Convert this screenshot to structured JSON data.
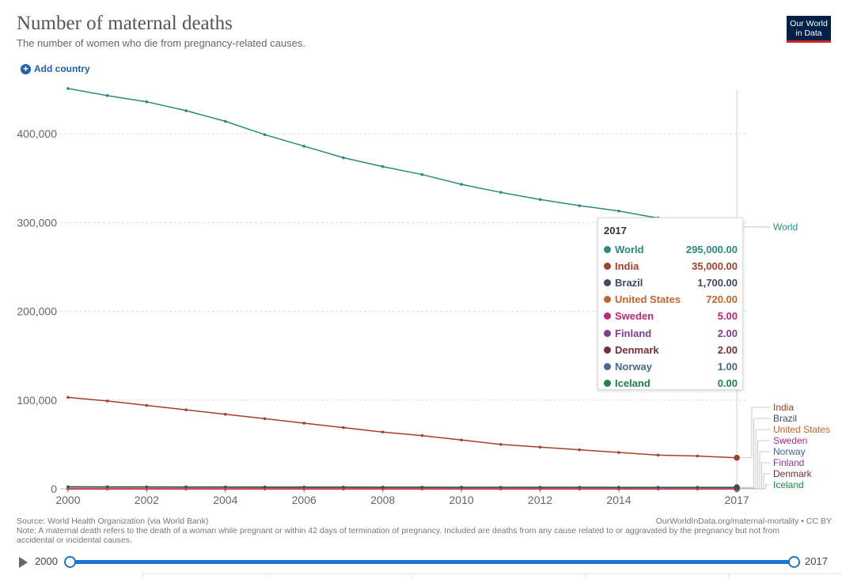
{
  "header": {
    "title": "Number of maternal deaths",
    "subtitle": "The number of women who die from pregnancy-related causes.",
    "logo_line1": "Our World",
    "logo_line2": "in Data",
    "add_country": "Add country"
  },
  "chart_data": {
    "type": "line",
    "title": "Number of maternal deaths",
    "subtitle": "The number of women who die from pregnancy-related causes.",
    "x": [
      2000,
      2001,
      2002,
      2003,
      2004,
      2005,
      2006,
      2007,
      2008,
      2009,
      2010,
      2011,
      2012,
      2013,
      2014,
      2015,
      2016,
      2017
    ],
    "xlim": [
      1999.8,
      2017.3
    ],
    "ylim": [
      0,
      450000
    ],
    "xticks": [
      "2000",
      "2002",
      "2004",
      "2006",
      "2008",
      "2010",
      "2012",
      "2014",
      "2017"
    ],
    "yticks": [
      "0",
      "100,000",
      "200,000",
      "300,000",
      "400,000"
    ],
    "grid": true,
    "series": [
      {
        "name": "World",
        "color": "#2a8a7f",
        "values": [
          451000,
          443000,
          436000,
          426000,
          414000,
          399000,
          386000,
          373000,
          363000,
          354000,
          343000,
          334000,
          326000,
          319000,
          313000,
          305000,
          300000,
          295000
        ]
      },
      {
        "name": "India",
        "color": "#a2402a",
        "values": [
          103000,
          99000,
          94000,
          89000,
          84000,
          79000,
          74000,
          69000,
          64000,
          60000,
          55000,
          50000,
          47000,
          44000,
          41000,
          38000,
          37000,
          35000
        ]
      },
      {
        "name": "Brazil",
        "color": "#3d4a63",
        "values": [
          2300,
          2250,
          2200,
          2150,
          2100,
          2050,
          2000,
          1950,
          1900,
          1850,
          1820,
          1790,
          1760,
          1740,
          1720,
          1710,
          1700,
          1700
        ]
      },
      {
        "name": "United States",
        "color": "#c4652d",
        "values": [
          600,
          610,
          620,
          630,
          640,
          650,
          660,
          670,
          680,
          690,
          700,
          705,
          710,
          712,
          715,
          717,
          719,
          720
        ]
      },
      {
        "name": "Sweden",
        "color": "#c0267d",
        "values": [
          5,
          5,
          5,
          5,
          5,
          5,
          5,
          5,
          5,
          5,
          5,
          5,
          5,
          5,
          5,
          5,
          5,
          5
        ]
      },
      {
        "name": "Finland",
        "color": "#7d3d94",
        "values": [
          2,
          2,
          2,
          2,
          2,
          2,
          2,
          2,
          2,
          2,
          2,
          2,
          2,
          2,
          2,
          2,
          2,
          2
        ]
      },
      {
        "name": "Denmark",
        "color": "#7a2e37",
        "values": [
          4,
          4,
          4,
          4,
          3,
          3,
          3,
          3,
          3,
          3,
          3,
          2,
          2,
          2,
          2,
          2,
          2,
          2
        ]
      },
      {
        "name": "Norway",
        "color": "#4a6592",
        "values": [
          3,
          3,
          3,
          2,
          2,
          2,
          2,
          2,
          2,
          2,
          2,
          1,
          1,
          1,
          1,
          1,
          1,
          1
        ]
      },
      {
        "name": "Iceland",
        "color": "#1c8446",
        "values": [
          0,
          0,
          0,
          0,
          0,
          0,
          0,
          0,
          0,
          0,
          0,
          0,
          0,
          0,
          0,
          0,
          0,
          0
        ]
      }
    ],
    "end_labels": [
      "World",
      "India",
      "Brazil",
      "United States",
      "Sweden",
      "Norway",
      "Finland",
      "Denmark",
      "Iceland"
    ]
  },
  "tooltip": {
    "year": "2017",
    "rows": [
      {
        "name": "World",
        "value": "295,000.00",
        "color": "#2a8a7f"
      },
      {
        "name": "India",
        "value": "35,000.00",
        "color": "#a2402a"
      },
      {
        "name": "Brazil",
        "value": "1,700.00",
        "color": "#3d4a63"
      },
      {
        "name": "United States",
        "value": "720.00",
        "color": "#c4652d"
      },
      {
        "name": "Sweden",
        "value": "5.00",
        "color": "#c0267d"
      },
      {
        "name": "Finland",
        "value": "2.00",
        "color": "#7d3d94"
      },
      {
        "name": "Denmark",
        "value": "2.00",
        "color": "#7a2e37"
      },
      {
        "name": "Norway",
        "value": "1.00",
        "color": "#4a6592"
      },
      {
        "name": "Iceland",
        "value": "0.00",
        "color": "#1c8446"
      }
    ]
  },
  "footer": {
    "source": "Source: World Health Organization (via World Bank)",
    "url": "OurWorldInData.org/maternal-mortality • CC BY",
    "note": "Note: A maternal death refers to the death of a woman while pregnant or within 42 days of termination of pregnancy. Included are deaths from any cause related to or aggravated by the pregnancy but not from accidental or incidental causes."
  },
  "timeline": {
    "start": "2000",
    "end": "2017",
    "start_value": 2000,
    "end_value": 2017
  }
}
